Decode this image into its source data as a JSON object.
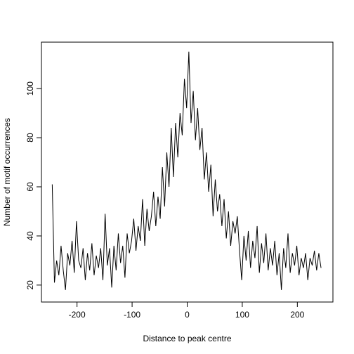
{
  "chart_data": {
    "type": "line",
    "xlabel": "Distance to peak centre",
    "ylabel": "Number of motif occurrences",
    "color": "#000000",
    "xlim": [
      -264.6,
      264.6
    ],
    "xticks": [
      -200,
      -100,
      0,
      100,
      200
    ],
    "ylim": [
      13.1,
      118.9
    ],
    "yticks": [
      20,
      40,
      60,
      80,
      100
    ],
    "x": [
      -245,
      -241,
      -237,
      -233,
      -229,
      -225,
      -221,
      -217,
      -213,
      -209,
      -205,
      -201,
      -197,
      -193,
      -189,
      -185,
      -181,
      -177,
      -173,
      -169,
      -165,
      -161,
      -157,
      -153,
      -149,
      -145,
      -141,
      -137,
      -133,
      -129,
      -125,
      -121,
      -117,
      -113,
      -109,
      -105,
      -101,
      -97,
      -93,
      -89,
      -85,
      -81,
      -77,
      -73,
      -69,
      -65,
      -61,
      -57,
      -53,
      -49,
      -45,
      -41,
      -37,
      -33,
      -29,
      -25,
      -21,
      -17,
      -13,
      -9,
      -5,
      -1,
      3,
      7,
      11,
      15,
      19,
      23,
      27,
      31,
      35,
      39,
      43,
      47,
      51,
      55,
      59,
      63,
      67,
      71,
      75,
      79,
      83,
      87,
      91,
      95,
      99,
      103,
      107,
      111,
      115,
      119,
      123,
      127,
      131,
      135,
      139,
      143,
      147,
      151,
      155,
      159,
      163,
      167,
      171,
      175,
      179,
      183,
      187,
      191,
      195,
      199,
      203,
      207,
      211,
      215,
      219,
      223,
      227,
      231,
      235,
      239,
      243
    ],
    "values": [
      61,
      21,
      30,
      24,
      36,
      26,
      18,
      33,
      28,
      38,
      25,
      46,
      30,
      27,
      35,
      22,
      33,
      26,
      37,
      24,
      32,
      27,
      35,
      22,
      49,
      28,
      35,
      19,
      36,
      26,
      41,
      29,
      36,
      23,
      41,
      33,
      38,
      47,
      34,
      44,
      38,
      55,
      36,
      51,
      42,
      48,
      58,
      44,
      56,
      47,
      68,
      52,
      74,
      60,
      84,
      64,
      86,
      72,
      90,
      81,
      104,
      92,
      115,
      86,
      99,
      79,
      92,
      75,
      84,
      63,
      74,
      58,
      69,
      48,
      63,
      50,
      57,
      44,
      55,
      39,
      50,
      36,
      46,
      41,
      48,
      34,
      22,
      40,
      30,
      42,
      27,
      38,
      31,
      44,
      25,
      37,
      29,
      41,
      26,
      35,
      28,
      38,
      24,
      33,
      18,
      35,
      27,
      41,
      25,
      33,
      28,
      36,
      24,
      31,
      27,
      33,
      22,
      31,
      28,
      34,
      26,
      33,
      27
    ]
  }
}
